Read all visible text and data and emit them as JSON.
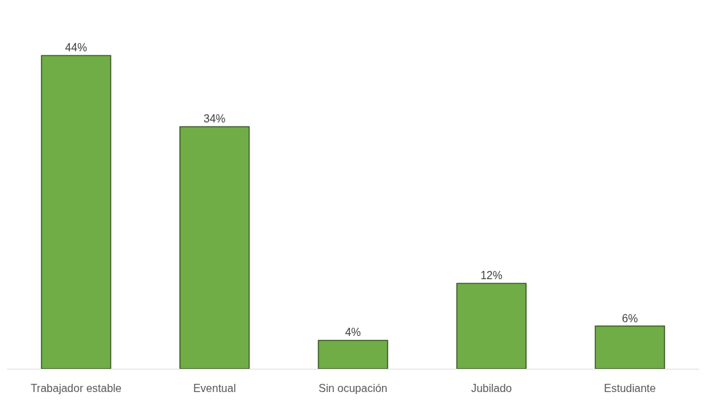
{
  "chart_data": {
    "type": "bar",
    "categories": [
      "Trabajador estable",
      "Eventual",
      "Sin ocupación",
      "Jubilado",
      "Estudiante"
    ],
    "values": [
      44,
      34,
      4,
      12,
      6
    ],
    "value_labels": [
      "44%",
      "34%",
      "4%",
      "12%",
      "6%"
    ],
    "color": "#70ad47",
    "legend": false
  }
}
